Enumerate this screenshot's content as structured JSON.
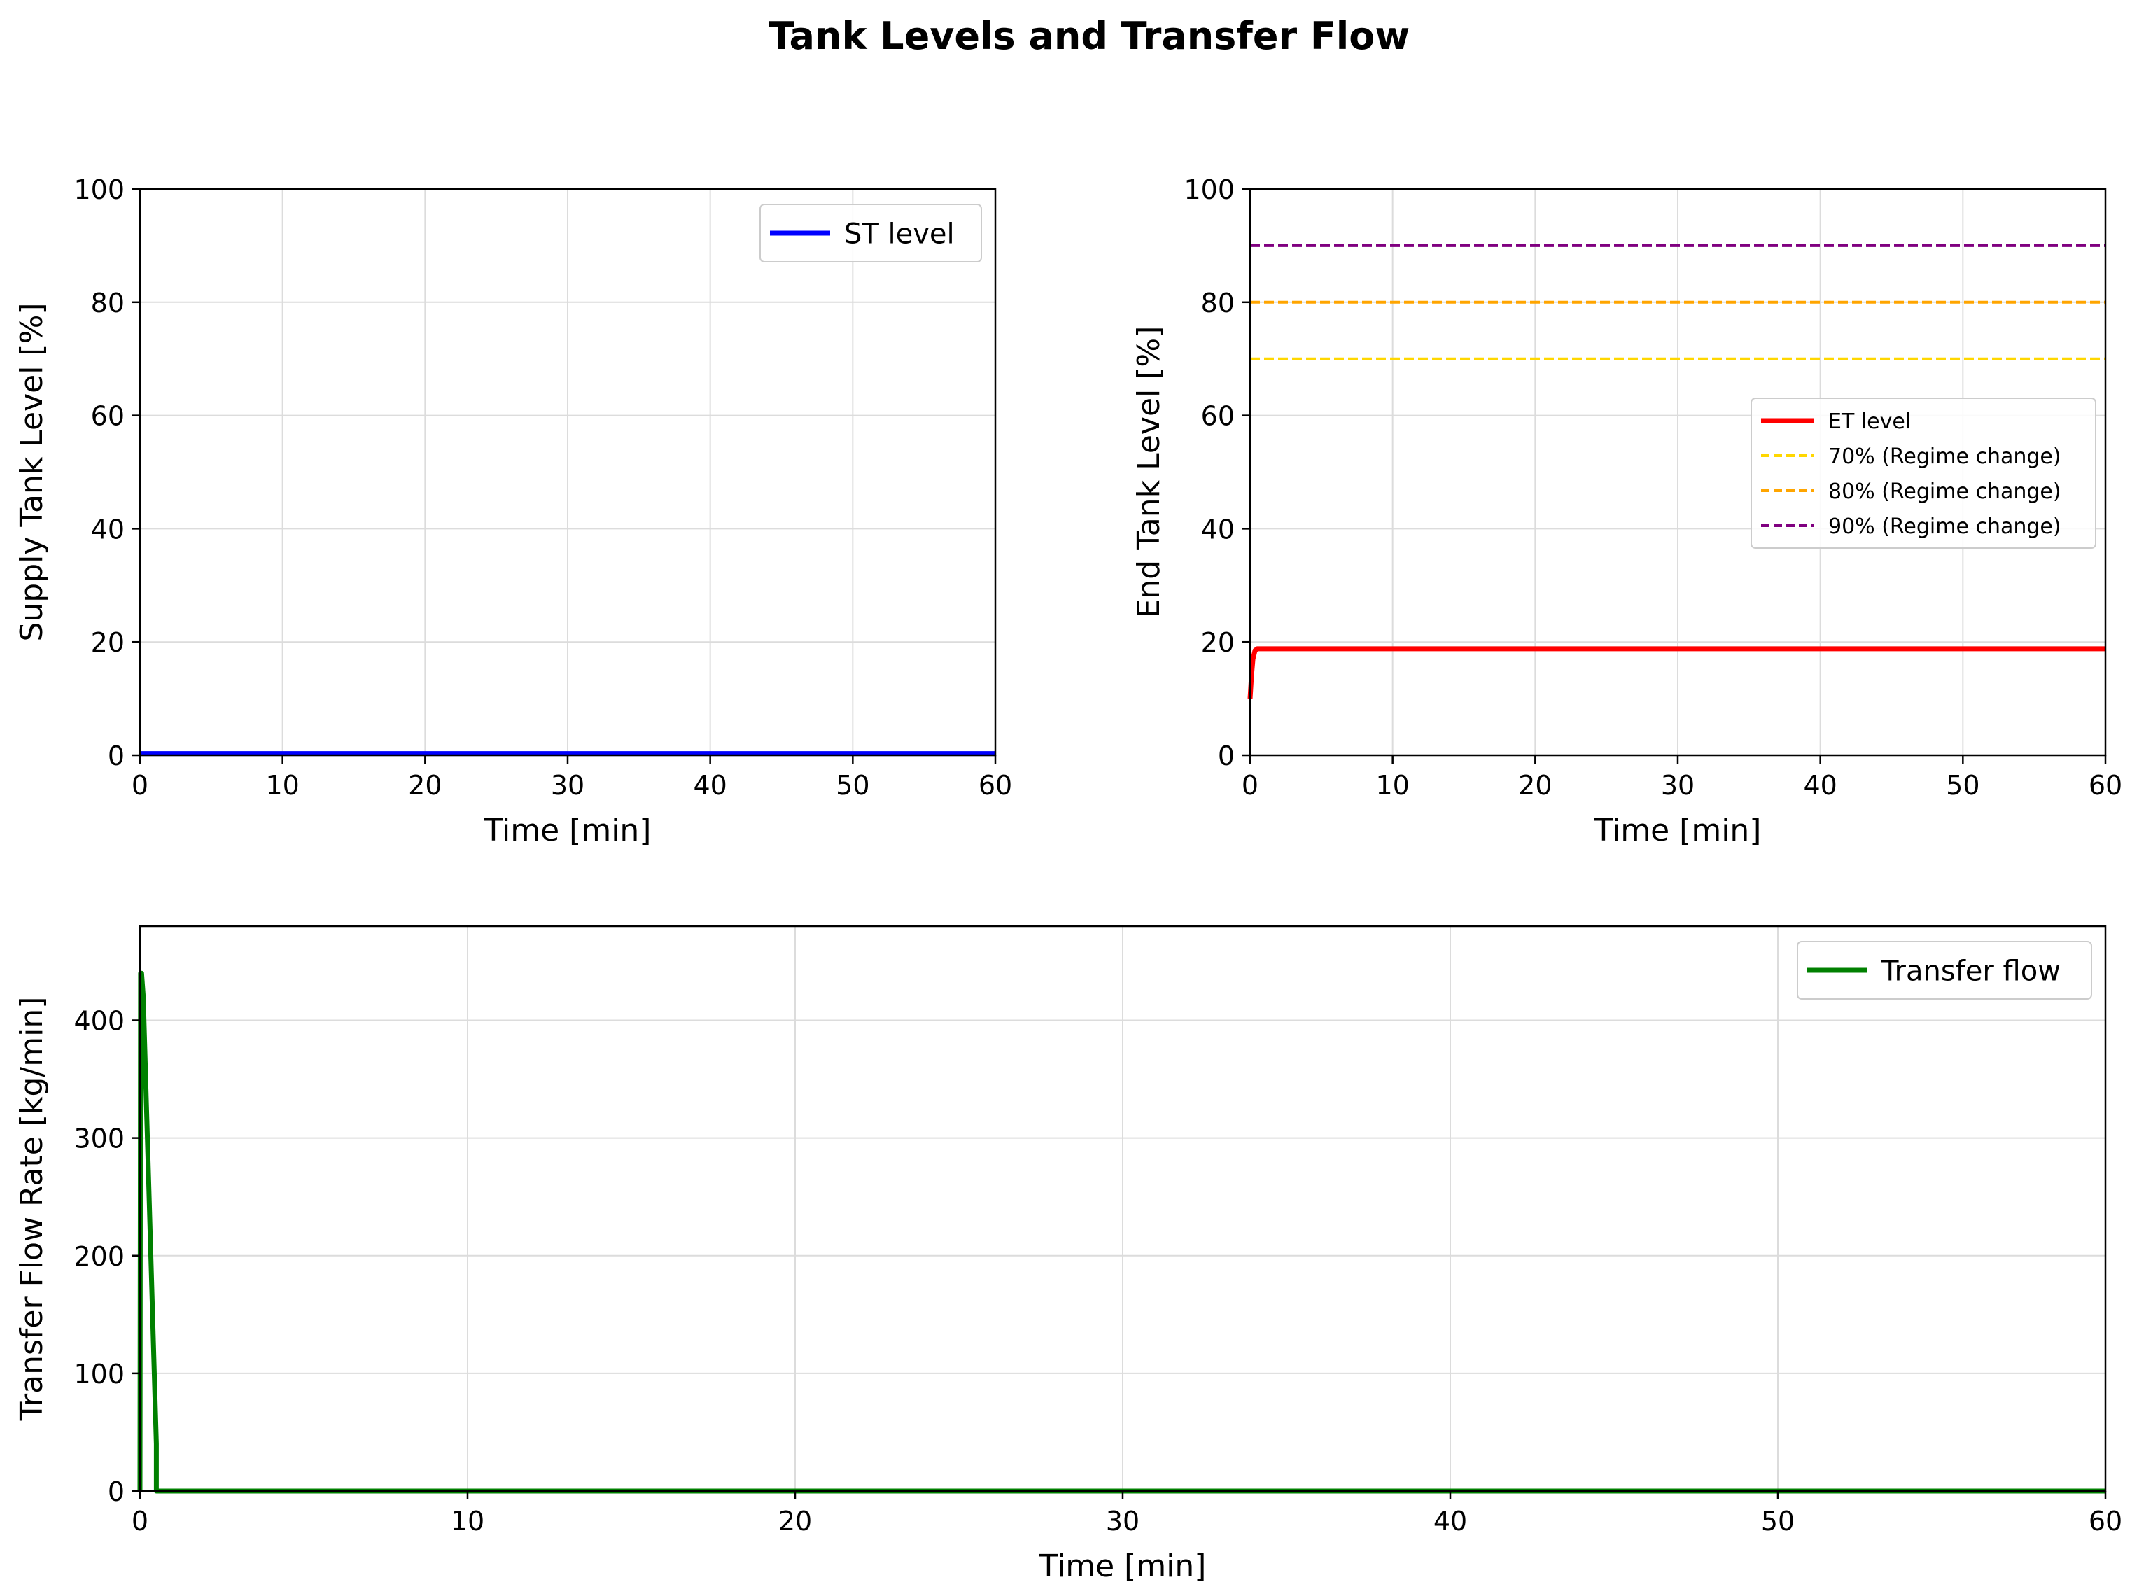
{
  "figure": {
    "title": "Tank Levels and Transfer Flow"
  },
  "chart_data": [
    {
      "type": "line",
      "xlabel": "Time [min]",
      "ylabel": "Supply Tank Level [%]",
      "xlim": [
        0,
        60
      ],
      "ylim": [
        0,
        100
      ],
      "xticks": [
        "0",
        "10",
        "20",
        "30",
        "40",
        "50",
        "60"
      ],
      "yticks": [
        "0",
        "20",
        "40",
        "60",
        "80",
        "100"
      ],
      "grid": true,
      "legend_position": "upper right",
      "series": [
        {
          "name": "ST level",
          "color": "#0000ff",
          "style": "solid",
          "x": [
            0,
            60
          ],
          "y": [
            0.3,
            0.3
          ]
        }
      ]
    },
    {
      "type": "line",
      "xlabel": "Time [min]",
      "ylabel": "End Tank Level [%]",
      "xlim": [
        0,
        60
      ],
      "ylim": [
        0,
        100
      ],
      "xticks": [
        "0",
        "10",
        "20",
        "30",
        "40",
        "50",
        "60"
      ],
      "yticks": [
        "0",
        "20",
        "40",
        "60",
        "80",
        "100"
      ],
      "grid": true,
      "legend_position": "center right",
      "series": [
        {
          "name": "ET level",
          "color": "#ff0000",
          "style": "solid",
          "x": [
            0,
            0.1,
            0.2,
            0.35,
            0.5,
            60
          ],
          "y": [
            10,
            14,
            17,
            18.5,
            18.8,
            18.8
          ]
        },
        {
          "name": "70% (Regime change)",
          "color": "#ffd700",
          "style": "dashed",
          "x": [
            0,
            60
          ],
          "y": [
            70,
            70
          ]
        },
        {
          "name": "80% (Regime change)",
          "color": "#ffa500",
          "style": "dashed",
          "x": [
            0,
            60
          ],
          "y": [
            80,
            80
          ]
        },
        {
          "name": "90% (Regime change)",
          "color": "#800080",
          "style": "dashed",
          "x": [
            0,
            60
          ],
          "y": [
            90,
            90
          ]
        }
      ]
    },
    {
      "type": "line",
      "xlabel": "Time [min]",
      "ylabel": "Transfer Flow Rate [kg/min]",
      "xlim": [
        0,
        60
      ],
      "ylim": [
        0,
        480
      ],
      "xticks": [
        "0",
        "10",
        "20",
        "30",
        "40",
        "50",
        "60"
      ],
      "yticks": [
        "0",
        "100",
        "200",
        "300",
        "400"
      ],
      "grid": true,
      "legend_position": "upper right",
      "series": [
        {
          "name": "Transfer flow",
          "color": "#008000",
          "style": "solid",
          "x": [
            0,
            0.02,
            0.05,
            0.1,
            0.5,
            0.5,
            60
          ],
          "y": [
            0,
            440,
            440,
            420,
            40,
            0,
            0
          ]
        }
      ]
    }
  ]
}
